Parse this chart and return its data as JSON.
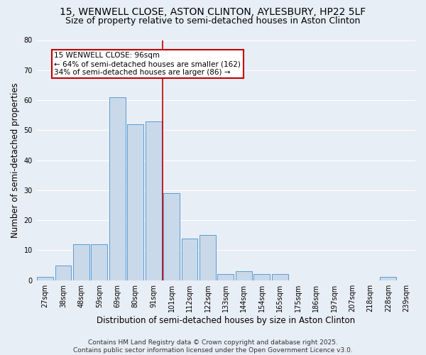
{
  "title_line1": "15, WENWELL CLOSE, ASTON CLINTON, AYLESBURY, HP22 5LF",
  "title_line2": "Size of property relative to semi-detached houses in Aston Clinton",
  "xlabel": "Distribution of semi-detached houses by size in Aston Clinton",
  "ylabel": "Number of semi-detached properties",
  "categories": [
    "27sqm",
    "38sqm",
    "48sqm",
    "59sqm",
    "69sqm",
    "80sqm",
    "91sqm",
    "101sqm",
    "112sqm",
    "122sqm",
    "133sqm",
    "144sqm",
    "154sqm",
    "165sqm",
    "175sqm",
    "186sqm",
    "197sqm",
    "207sqm",
    "218sqm",
    "228sqm",
    "239sqm"
  ],
  "values": [
    1,
    5,
    12,
    12,
    61,
    52,
    53,
    29,
    14,
    15,
    2,
    3,
    2,
    2,
    0,
    0,
    0,
    0,
    0,
    1,
    0
  ],
  "bar_color": "#c9d9ea",
  "bar_edge_color": "#5b9bd5",
  "vline_color": "#c00000",
  "annotation_title": "15 WENWELL CLOSE: 96sqm",
  "annotation_line1": "← 64% of semi-detached houses are smaller (162)",
  "annotation_line2": "34% of semi-detached houses are larger (86) →",
  "annotation_box_color": "#c00000",
  "ylim": [
    0,
    80
  ],
  "yticks": [
    0,
    10,
    20,
    30,
    40,
    50,
    60,
    70,
    80
  ],
  "footer": "Contains HM Land Registry data © Crown copyright and database right 2025.\nContains public sector information licensed under the Open Government Licence v3.0.",
  "bg_color": "#e8eef5",
  "plot_bg_color": "#e8eef5",
  "grid_color": "#ffffff",
  "title_fontsize": 10,
  "subtitle_fontsize": 9,
  "axis_label_fontsize": 8.5,
  "tick_fontsize": 7,
  "footer_fontsize": 6.5,
  "annotation_fontsize": 7.5
}
